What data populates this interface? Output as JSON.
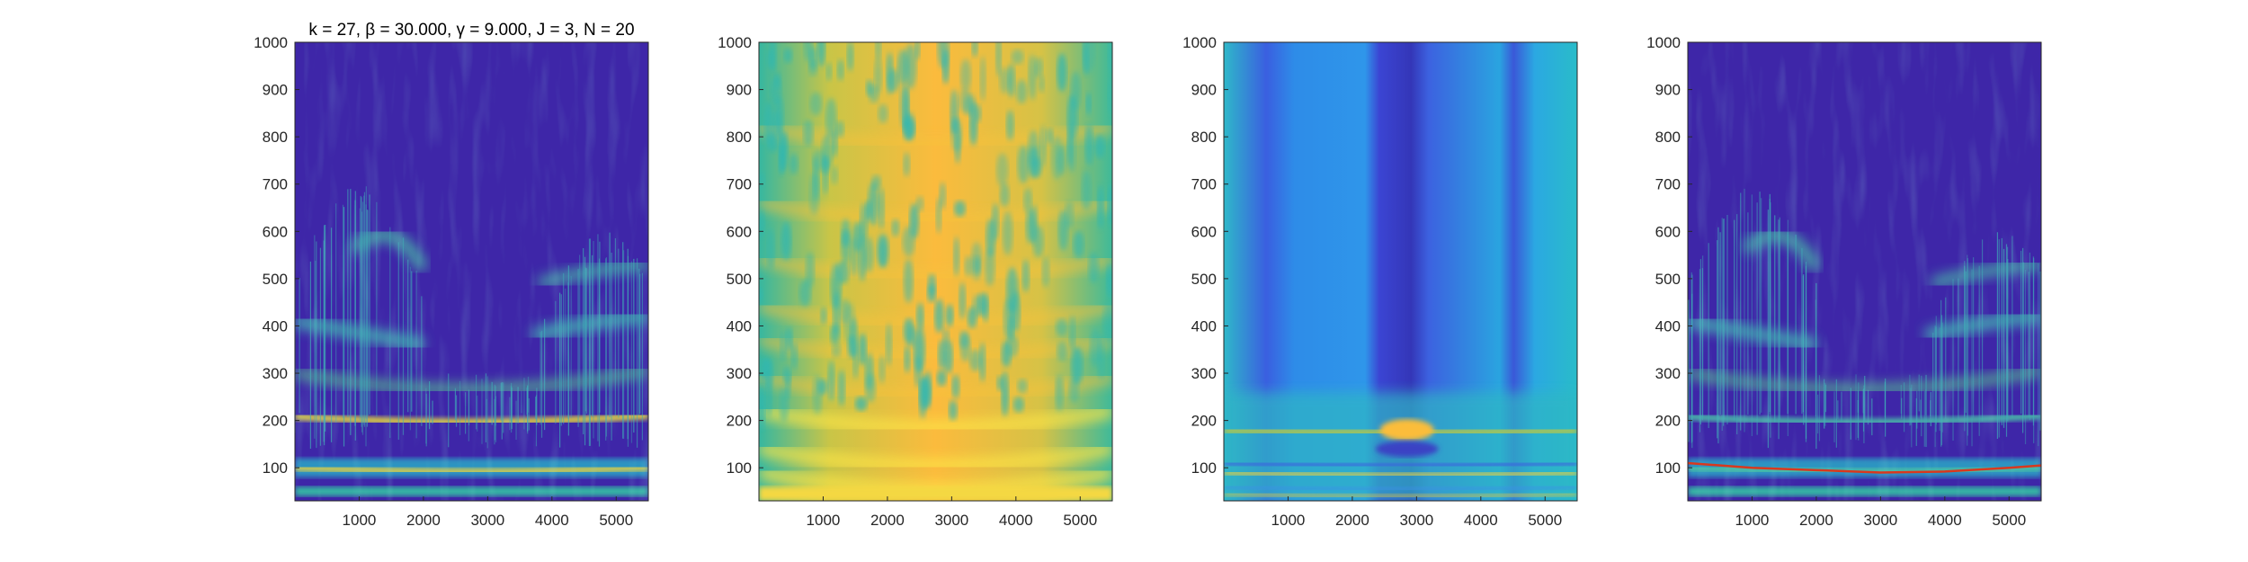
{
  "chart_data": [
    {
      "type": "heatmap",
      "title": "k = 27, β = 30.000, γ = 9.000, J = 3, N = 20",
      "xlabel": "",
      "ylabel": "",
      "xlim": [
        0,
        5500
      ],
      "ylim": [
        30,
        1000
      ],
      "x_ticks": [
        "1000",
        "2000",
        "3000",
        "4000",
        "5000"
      ],
      "y_ticks": [
        "100",
        "200",
        "300",
        "400",
        "500",
        "600",
        "700",
        "800",
        "900",
        "1000"
      ],
      "description_values": {
        "bands_y": [
          50,
          100,
          200,
          300,
          400,
          500,
          600
        ],
        "colormap": "parula",
        "background": "#3e26a8"
      }
    },
    {
      "type": "heatmap",
      "title": "",
      "xlabel": "",
      "ylabel": "",
      "xlim": [
        0,
        5500
      ],
      "ylim": [
        30,
        1000
      ],
      "x_ticks": [
        "1000",
        "2000",
        "3000",
        "4000",
        "5000"
      ],
      "y_ticks": [
        "100",
        "200",
        "300",
        "400",
        "500",
        "600",
        "700",
        "800",
        "900",
        "1000"
      ],
      "description_values": {
        "bands_y": [
          50,
          100,
          180,
          250,
          330,
          400,
          500,
          620,
          780
        ],
        "colormap": "parula",
        "background": "#f9c33b"
      }
    },
    {
      "type": "heatmap",
      "title": "",
      "xlabel": "",
      "ylabel": "",
      "xlim": [
        0,
        5500
      ],
      "ylim": [
        30,
        1000
      ],
      "x_ticks": [
        "1000",
        "2000",
        "3000",
        "4000",
        "5000"
      ],
      "y_ticks": [
        "100",
        "200",
        "300",
        "400",
        "500",
        "600",
        "700",
        "800",
        "900",
        "1000"
      ],
      "description_values": {
        "bands_y": [
          50,
          80,
          100,
          180,
          220
        ],
        "colormap": "parula",
        "background": "#2ab0d8"
      }
    },
    {
      "type": "heatmap",
      "title": "",
      "xlabel": "",
      "ylabel": "",
      "xlim": [
        0,
        5500
      ],
      "ylim": [
        30,
        1000
      ],
      "x_ticks": [
        "1000",
        "2000",
        "3000",
        "4000",
        "5000"
      ],
      "y_ticks": [
        "100",
        "200",
        "300",
        "400",
        "500",
        "600",
        "700",
        "800",
        "900",
        "1000"
      ],
      "description_values": {
        "bands_y": [
          50,
          100,
          200,
          300,
          400,
          500,
          600
        ],
        "ridge_line": {
          "x": [
            0,
            1000,
            2000,
            3000,
            4000,
            5000,
            5500
          ],
          "y": [
            110,
            100,
            95,
            90,
            92,
            100,
            105
          ],
          "color": "#d9381e"
        },
        "colormap": "parula",
        "background": "#3e26a8"
      }
    }
  ]
}
